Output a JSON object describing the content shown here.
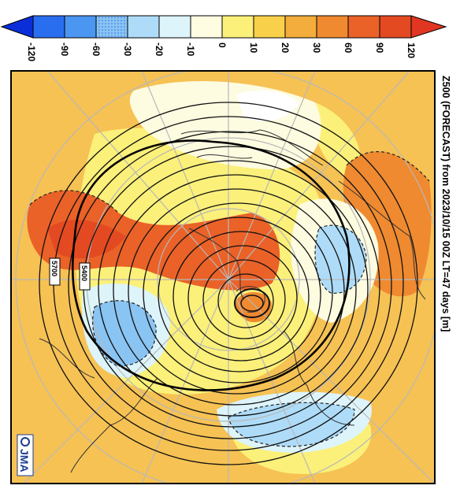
{
  "title": {
    "text": "Z500 (FORECAST)  from  2023/10/15 00Z LT=47 days  [m]"
  },
  "colorbar": {
    "tick_labels": [
      "-120",
      "-90",
      "-60",
      "-30",
      "-20",
      "-10",
      "0",
      "10",
      "20",
      "30",
      "60",
      "90",
      "120"
    ],
    "colors": [
      "#0a2ed8",
      "#2a6ef0",
      "#4a96f0",
      "#8ac4f2",
      "#aedcf8",
      "#ddf4fa",
      "#fefde2",
      "#fbf07a",
      "#f8d04a",
      "#f3ad3c",
      "#ef8a30",
      "#ea6228",
      "#e03622"
    ]
  },
  "map": {
    "background_color": "#f6c254",
    "contour_labels": [
      "5400",
      "5700"
    ],
    "logo_text": "JMA"
  }
}
